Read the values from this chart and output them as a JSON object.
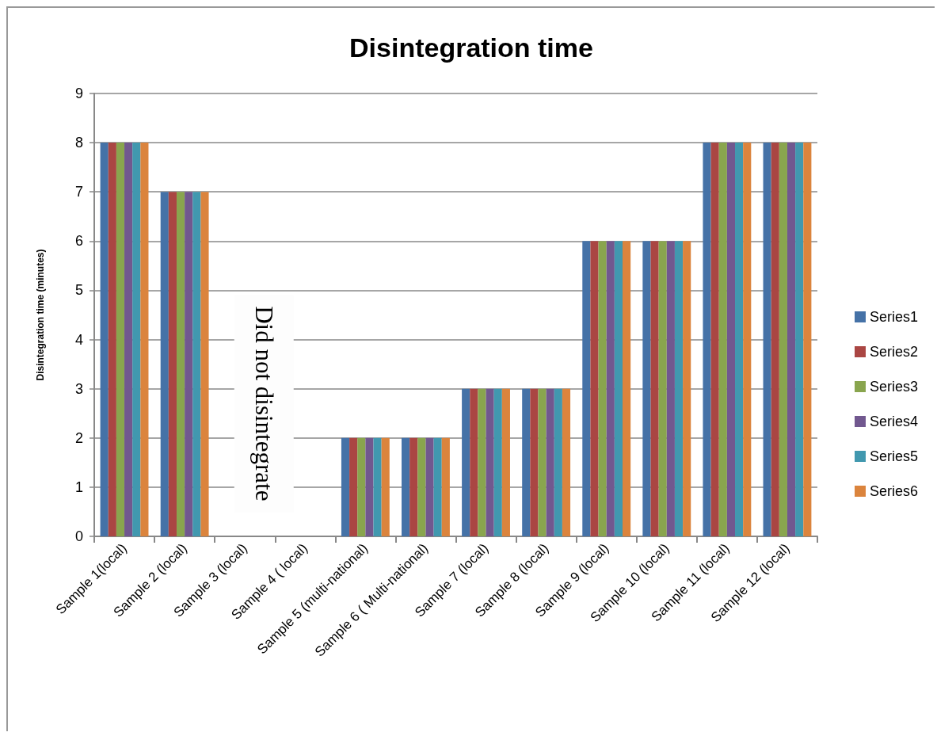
{
  "chart_data": {
    "type": "bar",
    "title": "Disintegration time",
    "ylabel": "Disintegration time (minutes)",
    "categories": [
      "Sample 1(local)",
      "Sample 2 (local)",
      "Sample 3 (local)",
      "Sample 4 ( local)",
      "Sample 5 (multi-national)",
      "Sample 6 ( Multi-national)",
      "Sample 7 (local)",
      "Sample 8 (local)",
      "Sample 9 (local)",
      "Sample 10 (local)",
      "Sample 11 (local)",
      "Sample 12 (local)"
    ],
    "series": [
      {
        "name": "Series1",
        "color": "#4572a7",
        "values": [
          8,
          7,
          null,
          null,
          2,
          2,
          3,
          3,
          6,
          6,
          8,
          8
        ]
      },
      {
        "name": "Series2",
        "color": "#aa4643",
        "values": [
          8,
          7,
          null,
          null,
          2,
          2,
          3,
          3,
          6,
          6,
          8,
          8
        ]
      },
      {
        "name": "Series3",
        "color": "#89a54e",
        "values": [
          8,
          7,
          null,
          null,
          2,
          2,
          3,
          3,
          6,
          6,
          8,
          8
        ]
      },
      {
        "name": "Series4",
        "color": "#71588f",
        "values": [
          8,
          7,
          null,
          null,
          2,
          2,
          3,
          3,
          6,
          6,
          8,
          8
        ]
      },
      {
        "name": "Series5",
        "color": "#4198af",
        "values": [
          8,
          7,
          null,
          null,
          2,
          2,
          3,
          3,
          6,
          6,
          8,
          8
        ]
      },
      {
        "name": "Series6",
        "color": "#db843d",
        "values": [
          8,
          7,
          null,
          null,
          2,
          2,
          3,
          3,
          6,
          6,
          8,
          8
        ]
      }
    ],
    "ylim": [
      0,
      9
    ],
    "yticks": [
      0,
      1,
      2,
      3,
      4,
      5,
      6,
      7,
      8,
      9
    ],
    "grid": "y",
    "legend": "right",
    "annotations": [
      "Did not disintegrate"
    ]
  }
}
